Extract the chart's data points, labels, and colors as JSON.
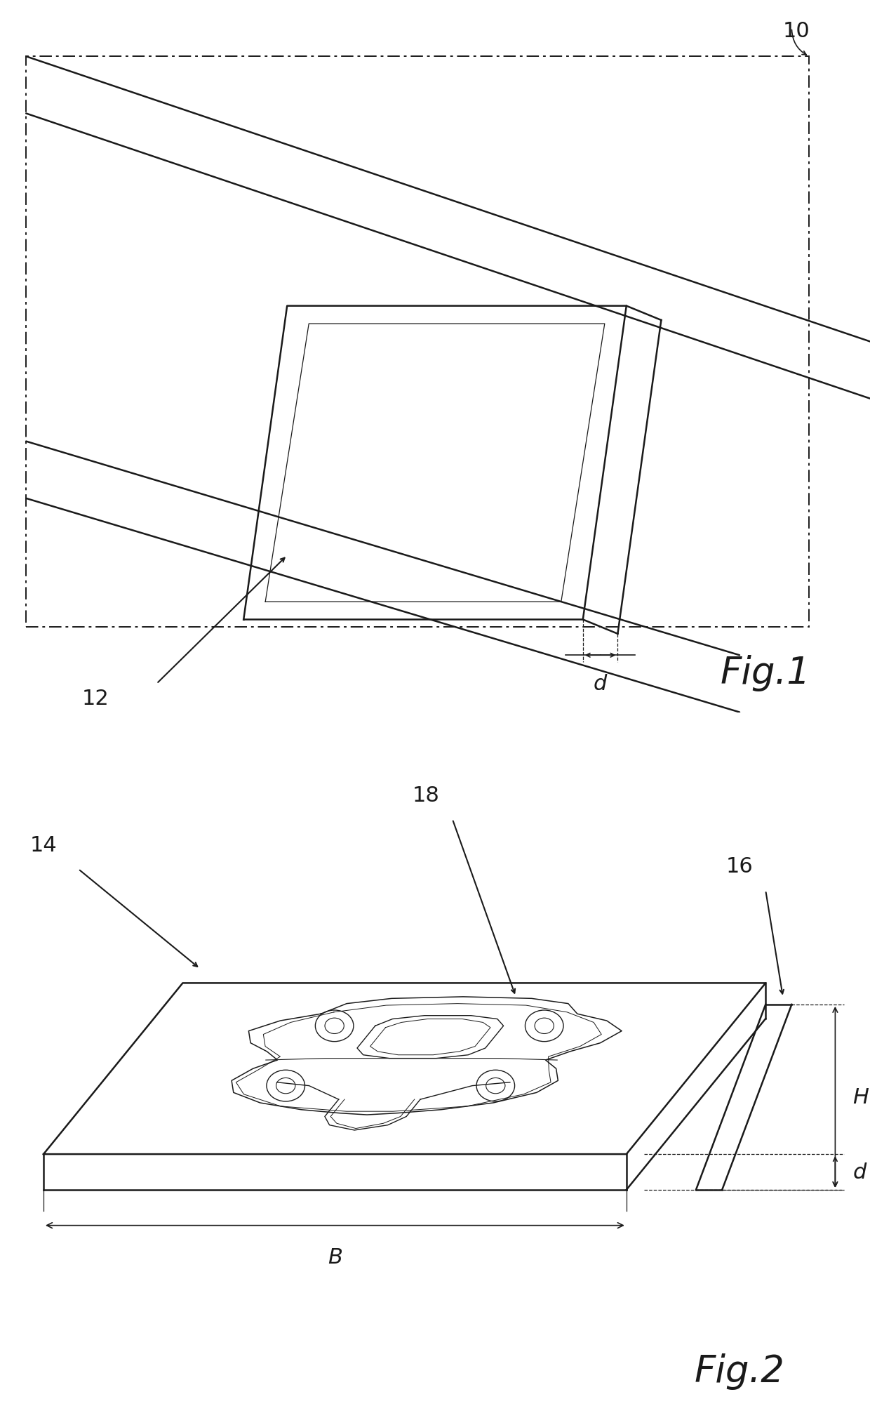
{
  "fig_width": 12.4,
  "fig_height": 20.31,
  "bg_color": "#ffffff",
  "line_color": "#1a1a1a",
  "lw_main": 1.8,
  "lw_thin": 1.0,
  "lw_dim": 1.2,
  "label_fs": 22,
  "fig_label_fs": 38,
  "dim_fs": 22,
  "fig1_label": "Fig.1",
  "fig2_label": "Fig.2",
  "n10": "10",
  "n12": "12",
  "n14": "14",
  "n16": "16",
  "n18": "18",
  "lH": "H",
  "lB": "B",
  "ld": "d"
}
